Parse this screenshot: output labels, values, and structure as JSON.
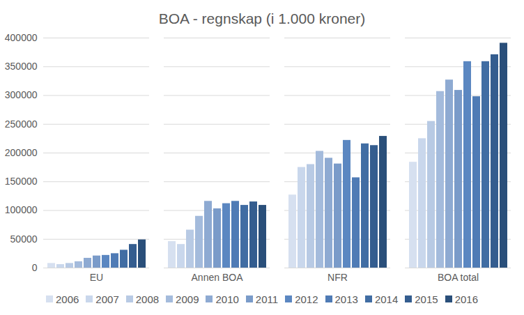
{
  "chart_data": {
    "type": "bar",
    "title": "BOA - regnskap (i 1.000 kroner)",
    "categories": [
      "EU",
      "Annen BOA",
      "NFR",
      "BOA total"
    ],
    "series": [
      {
        "name": "2006",
        "color": "#d6e0f0",
        "values": [
          8000,
          46000,
          127000,
          184000
        ]
      },
      {
        "name": "2007",
        "color": "#c9d7ec",
        "values": [
          6000,
          41000,
          175000,
          225000
        ]
      },
      {
        "name": "2008",
        "color": "#b8cae4",
        "values": [
          8000,
          66000,
          180000,
          255000
        ]
      },
      {
        "name": "2009",
        "color": "#a4bbdc",
        "values": [
          11000,
          90000,
          203000,
          307000
        ]
      },
      {
        "name": "2010",
        "color": "#8eaad2",
        "values": [
          17000,
          116000,
          191000,
          327000
        ]
      },
      {
        "name": "2011",
        "color": "#7a9bc9",
        "values": [
          21000,
          103000,
          181000,
          309000
        ]
      },
      {
        "name": "2012",
        "color": "#5b87c1",
        "values": [
          22000,
          112000,
          222000,
          359000
        ]
      },
      {
        "name": "2013",
        "color": "#4f7bb5",
        "values": [
          25000,
          116000,
          157000,
          298000
        ]
      },
      {
        "name": "2014",
        "color": "#416da3",
        "values": [
          31000,
          109000,
          216000,
          359000
        ]
      },
      {
        "name": "2015",
        "color": "#345d8f",
        "values": [
          41000,
          115000,
          213000,
          371000
        ]
      },
      {
        "name": "2016",
        "color": "#2a4f7a",
        "values": [
          49000,
          109000,
          229000,
          391000
        ]
      }
    ],
    "ylim": [
      0,
      400000
    ],
    "yticks": [
      0,
      50000,
      100000,
      150000,
      200000,
      250000,
      300000,
      350000,
      400000
    ],
    "grid": true,
    "legend": "bottom"
  }
}
